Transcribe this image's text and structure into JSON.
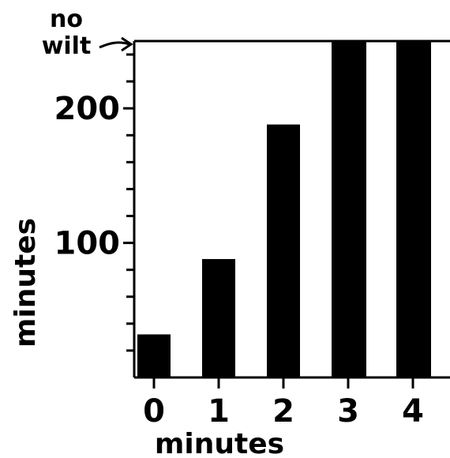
{
  "chart_data": {
    "type": "bar",
    "categories": [
      "0",
      "1",
      "2",
      "3",
      "4"
    ],
    "values": [
      32,
      88,
      188,
      250,
      250
    ],
    "xlabel": "minutes",
    "ylabel": "minutes",
    "ylim": [
      0,
      250
    ],
    "yticks": [
      "100",
      "200"
    ],
    "top_annotation": [
      "no",
      "wilt"
    ],
    "grid": false,
    "legend": "none",
    "bar_color": "#000000",
    "axis_color": "#000000"
  }
}
